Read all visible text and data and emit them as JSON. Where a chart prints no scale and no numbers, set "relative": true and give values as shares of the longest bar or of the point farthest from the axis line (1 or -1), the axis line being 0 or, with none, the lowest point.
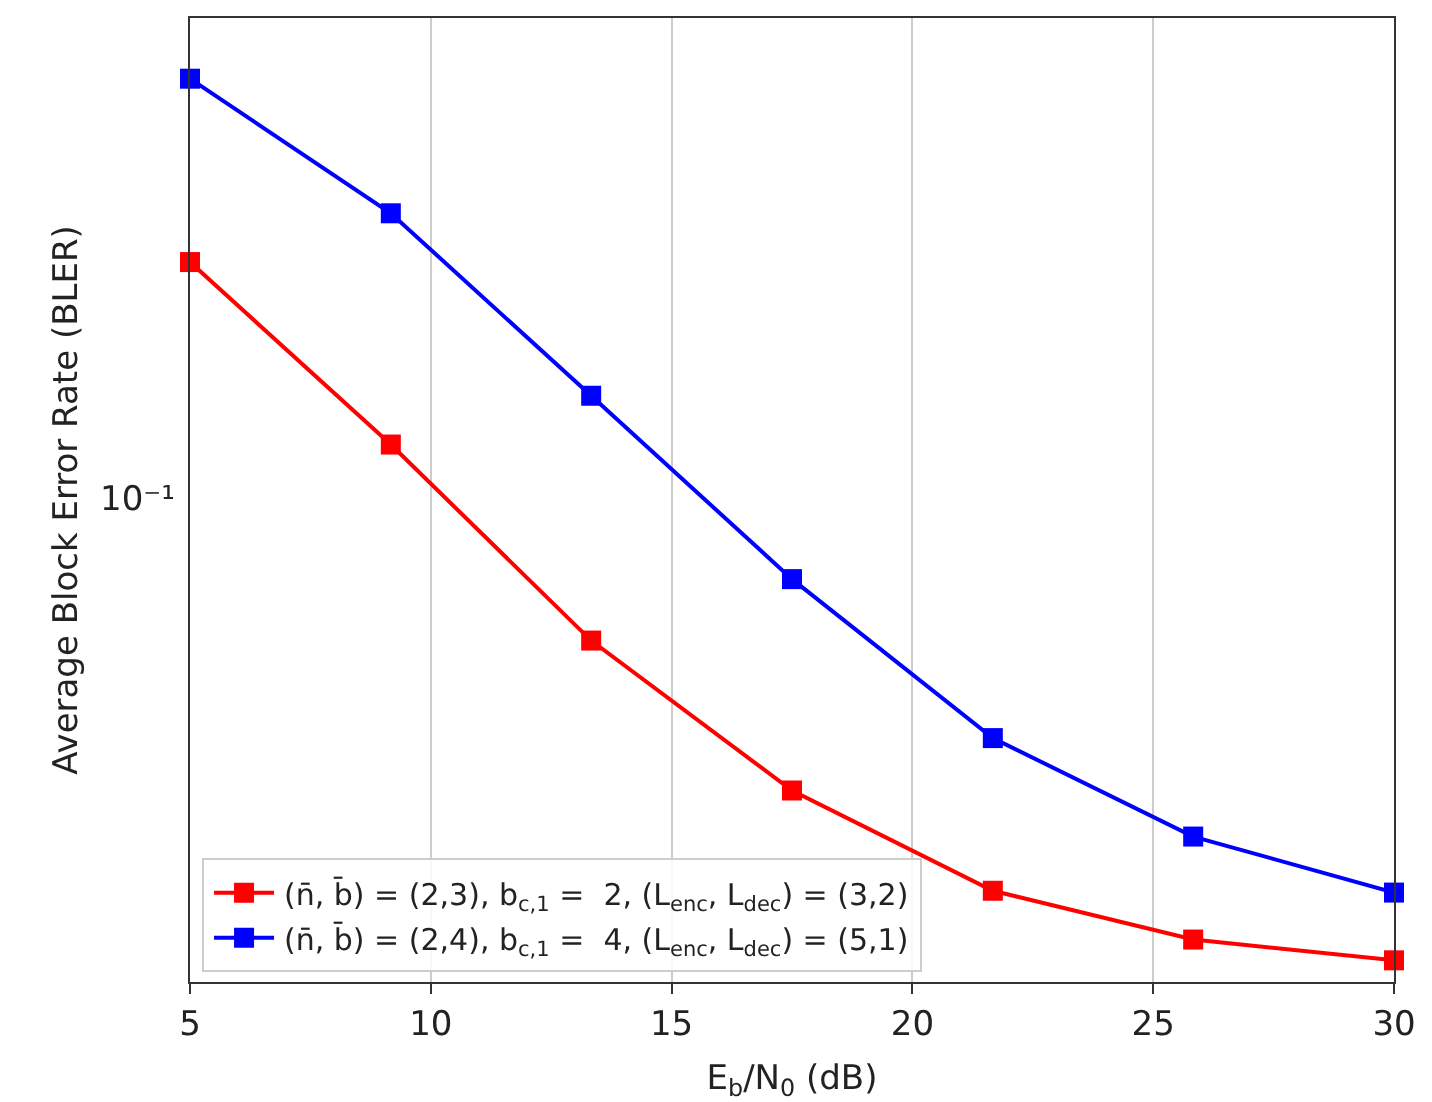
{
  "chart_data": {
    "type": "line",
    "xlabel": "E$_{b}$/N$_{0}$ (dB)",
    "ylabel": "Average Block Error Rate (BLER)",
    "x": [
      5,
      9.17,
      13.33,
      17.5,
      21.67,
      25.83,
      30
    ],
    "series": [
      {
        "name": "(n̄, b̄) = (2,3), b$_{c,1}$ =  2, (L$_{enc}$, L$_{dec}$) = (3,2)",
        "color": "#ff0000",
        "values": [
          0.797,
          0.595,
          0.378,
          0.212,
          0.101,
          0.047,
          0.024
        ]
      },
      {
        "name": "(n̄, b̄) = (2,4), b$_{c,1}$ =  4, (L$_{enc}$, L$_{dec}$) = (5,1)",
        "color": "#0000ff",
        "values": [
          1,
          0.851,
          0.649,
          0.446,
          0.27,
          0.161,
          0.099
        ]
      }
    ],
    "relative": true,
    "xlim": [
      5,
      30
    ],
    "xticks": [
      5,
      10,
      15,
      20,
      25,
      30
    ],
    "annotations": [
      "10⁻¹"
    ],
    "grid": "x",
    "legend": "bottom left",
    "marker": "square",
    "line_style": "solid"
  }
}
